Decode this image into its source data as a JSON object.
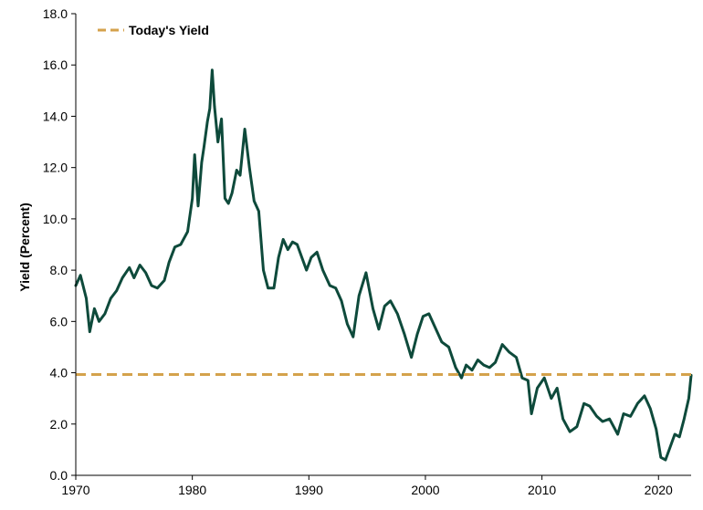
{
  "chart_data": {
    "type": "line",
    "title": "",
    "xlabel": "",
    "ylabel": "Yield (Percent)",
    "xlim": [
      1970,
      2022.8
    ],
    "ylim": [
      0,
      18
    ],
    "x_ticks": [
      1970,
      1980,
      1990,
      2000,
      2010,
      2020
    ],
    "x_tick_labels": [
      "1970",
      "1980",
      "1990",
      "2000",
      "2010",
      "2020"
    ],
    "y_ticks": [
      0,
      2,
      4,
      6,
      8,
      10,
      12,
      14,
      16,
      18
    ],
    "y_tick_labels": [
      "0.0",
      "2.0",
      "4.0",
      "6.0",
      "8.0",
      "10.0",
      "12.0",
      "14.0",
      "16.0",
      "18.0"
    ],
    "grid": false,
    "legend_position": "top-left",
    "series": [
      {
        "color": "#0e4a3b",
        "style": "solid",
        "x": [
          1970.0,
          1970.4,
          1970.9,
          1971.2,
          1971.6,
          1972.0,
          1972.5,
          1973.0,
          1973.5,
          1974.0,
          1974.6,
          1975.0,
          1975.5,
          1976.0,
          1976.5,
          1977.0,
          1977.6,
          1978.0,
          1978.5,
          1979.0,
          1979.6,
          1980.0,
          1980.2,
          1980.5,
          1980.8,
          1981.0,
          1981.3,
          1981.5,
          1981.7,
          1981.9,
          1982.2,
          1982.5,
          1982.8,
          1983.1,
          1983.4,
          1983.8,
          1984.1,
          1984.5,
          1984.9,
          1985.3,
          1985.7,
          1986.1,
          1986.5,
          1987.0,
          1987.4,
          1987.8,
          1988.2,
          1988.6,
          1989.0,
          1989.4,
          1989.8,
          1990.2,
          1990.7,
          1991.2,
          1991.8,
          1992.3,
          1992.8,
          1993.3,
          1993.8,
          1994.3,
          1994.9,
          1995.5,
          1996.0,
          1996.5,
          1997.0,
          1997.6,
          1998.2,
          1998.8,
          1999.3,
          1999.8,
          2000.3,
          2000.8,
          2001.4,
          2002.0,
          2002.6,
          2003.1,
          2003.5,
          2004.0,
          2004.5,
          2005.0,
          2005.5,
          2006.0,
          2006.6,
          2007.2,
          2007.8,
          2008.3,
          2008.8,
          2009.1,
          2009.6,
          2010.2,
          2010.8,
          2011.3,
          2011.8,
          2012.4,
          2013.0,
          2013.6,
          2014.1,
          2014.7,
          2015.2,
          2015.8,
          2016.5,
          2017.0,
          2017.6,
          2018.2,
          2018.8,
          2019.3,
          2019.8,
          2020.2,
          2020.6,
          2021.0,
          2021.4,
          2021.8,
          2022.2,
          2022.6,
          2022.8
        ],
        "y": [
          7.4,
          7.8,
          6.9,
          5.6,
          6.5,
          6.0,
          6.3,
          6.9,
          7.2,
          7.7,
          8.1,
          7.7,
          8.2,
          7.9,
          7.4,
          7.3,
          7.6,
          8.3,
          8.9,
          9.0,
          9.5,
          10.8,
          12.5,
          10.5,
          12.2,
          12.8,
          13.8,
          14.3,
          15.8,
          14.4,
          13.0,
          13.9,
          10.8,
          10.6,
          11.0,
          11.9,
          11.7,
          13.5,
          12.0,
          10.7,
          10.3,
          8.0,
          7.3,
          7.3,
          8.5,
          9.2,
          8.8,
          9.1,
          9.0,
          8.5,
          8.0,
          8.5,
          8.7,
          8.0,
          7.4,
          7.3,
          6.8,
          5.9,
          5.4,
          7.0,
          7.9,
          6.5,
          5.7,
          6.6,
          6.8,
          6.3,
          5.5,
          4.6,
          5.5,
          6.2,
          6.3,
          5.8,
          5.2,
          5.0,
          4.2,
          3.8,
          4.3,
          4.1,
          4.5,
          4.3,
          4.2,
          4.4,
          5.1,
          4.8,
          4.6,
          3.8,
          3.7,
          2.4,
          3.4,
          3.8,
          3.0,
          3.4,
          2.2,
          1.7,
          1.9,
          2.8,
          2.7,
          2.3,
          2.1,
          2.2,
          1.6,
          2.4,
          2.3,
          2.8,
          3.1,
          2.6,
          1.8,
          0.7,
          0.6,
          1.1,
          1.6,
          1.5,
          2.2,
          3.0,
          3.9
        ]
      },
      {
        "name": "Today's Yield",
        "color": "#d4a24c",
        "style": "dashed",
        "x": [
          1970.0,
          2022.8
        ],
        "y": [
          3.93,
          3.93
        ]
      }
    ]
  }
}
